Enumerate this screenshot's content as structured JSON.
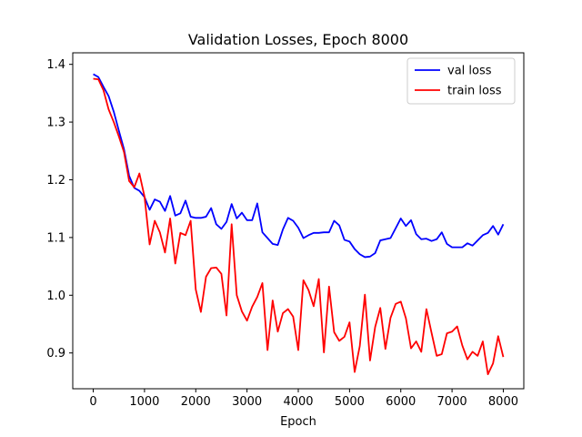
{
  "chart_data": {
    "type": "line",
    "title": "Validation Losses, Epoch 8000",
    "xlabel": "Epoch",
    "ylabel": "",
    "xlim": [
      -400,
      8400
    ],
    "ylim": [
      0.838,
      1.42
    ],
    "xticks": [
      0,
      1000,
      2000,
      3000,
      4000,
      5000,
      6000,
      7000,
      8000
    ],
    "yticks": [
      0.9,
      1.0,
      1.1,
      1.2,
      1.3,
      1.4
    ],
    "ytick_labels": [
      "0.9",
      "1.0",
      "1.1",
      "1.2",
      "1.3",
      "1.4"
    ],
    "legend_position": "top-right",
    "grid": false,
    "series": [
      {
        "name": "val loss",
        "color": "#0000ff",
        "x": [
          0,
          100,
          200,
          300,
          400,
          500,
          600,
          700,
          800,
          900,
          1000,
          1100,
          1200,
          1300,
          1400,
          1500,
          1600,
          1700,
          1800,
          1900,
          2000,
          2100,
          2200,
          2300,
          2400,
          2500,
          2600,
          2700,
          2800,
          2900,
          3000,
          3100,
          3200,
          3300,
          3400,
          3500,
          3600,
          3700,
          3800,
          3900,
          4000,
          4100,
          4200,
          4300,
          4400,
          4500,
          4600,
          4700,
          4800,
          4900,
          5000,
          5100,
          5200,
          5300,
          5400,
          5500,
          5600,
          5700,
          5800,
          5900,
          6000,
          6100,
          6200,
          6300,
          6400,
          6500,
          6600,
          6700,
          6800,
          6900,
          7000,
          7100,
          7200,
          7300,
          7400,
          7500,
          7600,
          7700,
          7800,
          7900,
          8000
        ],
        "y": [
          1.383,
          1.378,
          1.361,
          1.345,
          1.318,
          1.285,
          1.253,
          1.207,
          1.186,
          1.181,
          1.17,
          1.148,
          1.166,
          1.162,
          1.146,
          1.172,
          1.138,
          1.142,
          1.164,
          1.136,
          1.134,
          1.134,
          1.136,
          1.151,
          1.123,
          1.115,
          1.127,
          1.158,
          1.133,
          1.143,
          1.13,
          1.13,
          1.159,
          1.109,
          1.099,
          1.089,
          1.087,
          1.114,
          1.134,
          1.129,
          1.117,
          1.099,
          1.104,
          1.108,
          1.108,
          1.109,
          1.109,
          1.129,
          1.121,
          1.096,
          1.093,
          1.08,
          1.071,
          1.066,
          1.067,
          1.073,
          1.095,
          1.097,
          1.099,
          1.116,
          1.133,
          1.12,
          1.13,
          1.106,
          1.097,
          1.098,
          1.094,
          1.097,
          1.109,
          1.089,
          1.083,
          1.083,
          1.083,
          1.09,
          1.086,
          1.095,
          1.104,
          1.108,
          1.12,
          1.105,
          1.123
        ]
      },
      {
        "name": "train loss",
        "color": "#ff0000",
        "x": [
          0,
          100,
          200,
          300,
          400,
          500,
          600,
          700,
          800,
          900,
          1000,
          1100,
          1200,
          1300,
          1400,
          1500,
          1600,
          1700,
          1800,
          1900,
          2000,
          2100,
          2200,
          2300,
          2400,
          2500,
          2600,
          2700,
          2800,
          2900,
          3000,
          3100,
          3200,
          3300,
          3400,
          3500,
          3600,
          3700,
          3800,
          3900,
          4000,
          4100,
          4200,
          4300,
          4400,
          4500,
          4600,
          4700,
          4800,
          4900,
          5000,
          5100,
          5200,
          5300,
          5400,
          5500,
          5600,
          5700,
          5800,
          5900,
          6000,
          6100,
          6200,
          6300,
          6400,
          6500,
          6600,
          6700,
          6800,
          6900,
          7000,
          7100,
          7200,
          7300,
          7400,
          7500,
          7600,
          7700,
          7800,
          7900,
          8000
        ],
        "y": [
          1.375,
          1.374,
          1.355,
          1.322,
          1.3,
          1.275,
          1.248,
          1.198,
          1.187,
          1.211,
          1.171,
          1.088,
          1.129,
          1.109,
          1.074,
          1.133,
          1.055,
          1.108,
          1.104,
          1.129,
          1.01,
          0.971,
          1.032,
          1.047,
          1.048,
          1.037,
          0.965,
          1.123,
          1.0,
          0.972,
          0.956,
          0.98,
          0.997,
          1.021,
          0.905,
          0.991,
          0.937,
          0.969,
          0.976,
          0.963,
          0.905,
          1.026,
          1.009,
          0.981,
          1.028,
          0.901,
          1.015,
          0.936,
          0.921,
          0.928,
          0.953,
          0.867,
          0.912,
          1.001,
          0.887,
          0.945,
          0.978,
          0.907,
          0.961,
          0.985,
          0.989,
          0.96,
          0.908,
          0.92,
          0.902,
          0.976,
          0.935,
          0.895,
          0.898,
          0.934,
          0.937,
          0.946,
          0.913,
          0.889,
          0.902,
          0.895,
          0.92,
          0.863,
          0.882,
          0.929,
          0.893
        ]
      }
    ]
  }
}
